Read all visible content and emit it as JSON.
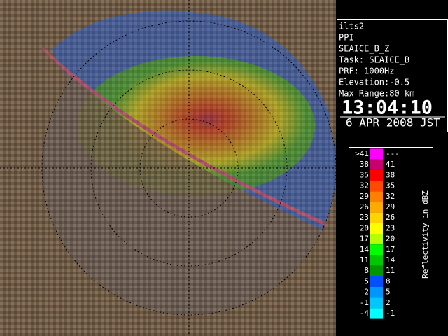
{
  "info": {
    "lines": [
      "ilts2",
      "PPI",
      "SEAICE_B_Z",
      "Task: SEAICE_B",
      "PRF: 1000Hz",
      "Elevation:-0.5",
      "Max Range:80 km"
    ],
    "time": "13:04:10",
    "date": "6 APR 2008 JST"
  },
  "legend": {
    "title": "Reflectivity in dBZ",
    "rows": [
      {
        "low": ">41",
        "high": "---",
        "color": "#ff00ff"
      },
      {
        "low": "38",
        "high": "41",
        "color": "#c8006e"
      },
      {
        "low": "35",
        "high": "38",
        "color": "#ff0000"
      },
      {
        "low": "32",
        "high": "35",
        "color": "#ff4a00"
      },
      {
        "low": "29",
        "high": "32",
        "color": "#ff8000"
      },
      {
        "low": "26",
        "high": "29",
        "color": "#ffaa00"
      },
      {
        "low": "23",
        "high": "26",
        "color": "#ffd400"
      },
      {
        "low": "20",
        "high": "23",
        "color": "#ffff00"
      },
      {
        "low": "17",
        "high": "20",
        "color": "#b4ff00"
      },
      {
        "low": "14",
        "high": "17",
        "color": "#00ff00"
      },
      {
        "low": "11",
        "high": "14",
        "color": "#00c800"
      },
      {
        "low": "8",
        "high": "11",
        "color": "#009600"
      },
      {
        "low": "5",
        "high": "8",
        "color": "#0050ff"
      },
      {
        "low": "2",
        "high": "5",
        "color": "#0096ff"
      },
      {
        "low": "-1",
        "high": "2",
        "color": "#00c8ff"
      },
      {
        "low": "-4",
        "high": "-1",
        "color": "#00ffff"
      }
    ]
  }
}
